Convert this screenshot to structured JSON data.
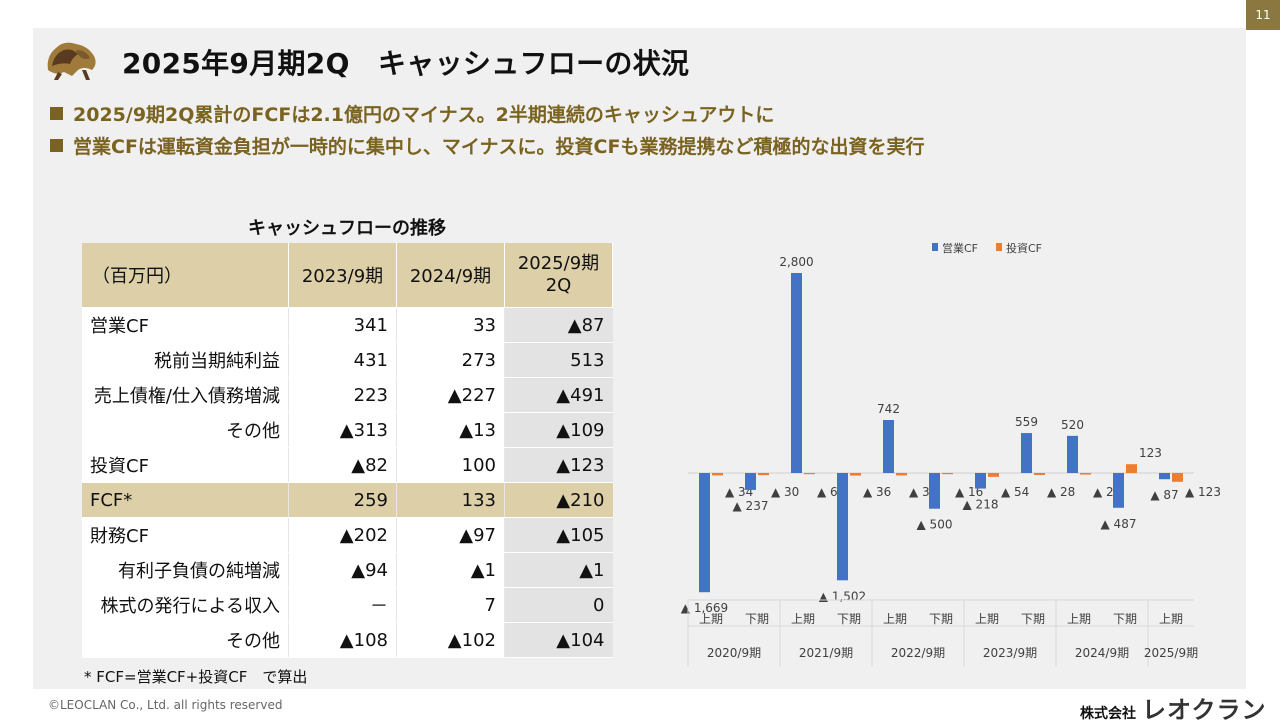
{
  "page_number": "11",
  "title": "2025年9月期2Q　キャッシュフローの状況",
  "bullets": [
    "2025/9期2Q累計のFCFは2.1億円のマイナス。2半期連続のキャッシュアウトに",
    "営業CFは運転資金負担が一時的に集中し、マイナスに。投資CFも業務提携など積極的な出資を実行"
  ],
  "table": {
    "title": "キャッシュフローの推移",
    "headers": [
      "（百万円）",
      "2023/9期",
      "2024/9期",
      "2025/9期\n2Q"
    ],
    "rows": [
      {
        "label": "営業CF",
        "indent": false,
        "fcf": false,
        "values": [
          "341",
          "33",
          "▲87"
        ]
      },
      {
        "label": "税前当期純利益",
        "indent": true,
        "fcf": false,
        "values": [
          "431",
          "273",
          "513"
        ]
      },
      {
        "label": "売上債権/仕入債務増減",
        "indent": true,
        "fcf": false,
        "values": [
          "223",
          "▲227",
          "▲491"
        ]
      },
      {
        "label": "その他",
        "indent": true,
        "fcf": false,
        "values": [
          "▲313",
          "▲13",
          "▲109"
        ]
      },
      {
        "label": "投資CF",
        "indent": false,
        "fcf": false,
        "values": [
          "▲82",
          "100",
          "▲123"
        ]
      },
      {
        "label": "FCF*",
        "indent": false,
        "fcf": true,
        "values": [
          "259",
          "133",
          "▲210"
        ]
      },
      {
        "label": "財務CF",
        "indent": false,
        "fcf": false,
        "values": [
          "▲202",
          "▲97",
          "▲105"
        ]
      },
      {
        "label": "有利子負債の純増減",
        "indent": true,
        "fcf": false,
        "values": [
          "▲94",
          "▲1",
          "▲1"
        ]
      },
      {
        "label": "株式の発行による収入",
        "indent": true,
        "fcf": false,
        "values": [
          "－",
          "7",
          "0"
        ]
      },
      {
        "label": "その他",
        "indent": true,
        "fcf": false,
        "values": [
          "▲108",
          "▲102",
          "▲104"
        ]
      }
    ],
    "footnote": "* FCF=営業CF+投資CF　で算出"
  },
  "chart_data": {
    "type": "bar",
    "categories": [
      {
        "half": "上期",
        "year": "2020/9期"
      },
      {
        "half": "下期",
        "year": "2020/9期"
      },
      {
        "half": "上期",
        "year": "2021/9期"
      },
      {
        "half": "下期",
        "year": "2021/9期"
      },
      {
        "half": "上期",
        "year": "2022/9期"
      },
      {
        "half": "下期",
        "year": "2022/9期"
      },
      {
        "half": "上期",
        "year": "2023/9期"
      },
      {
        "half": "下期",
        "year": "2023/9期"
      },
      {
        "half": "上期",
        "year": "2024/9期"
      },
      {
        "half": "下期",
        "year": "2024/9期"
      },
      {
        "half": "上期",
        "year": "2025/9期"
      }
    ],
    "years": [
      "2020/9期",
      "2021/9期",
      "2022/9期",
      "2023/9期",
      "2024/9期",
      "2025/9期"
    ],
    "series": [
      {
        "name": "営業CF",
        "color": "#4472c4",
        "values": [
          -1669,
          -237,
          2800,
          -1502,
          742,
          -500,
          -218,
          559,
          520,
          -487,
          -87
        ],
        "labels": [
          "▲ 1,669",
          "▲ 237",
          "2,800",
          "▲ 1,502",
          "742",
          "▲ 500",
          "▲ 218",
          "559",
          "520",
          "▲ 487",
          "▲ 87"
        ]
      },
      {
        "name": "投資CF",
        "color": "#ed7d31",
        "values": [
          -34,
          -30,
          -6,
          -36,
          -34,
          -16,
          -54,
          -28,
          -22,
          123,
          -123
        ],
        "labels": [
          "▲ 34",
          "▲ 30",
          "▲ 6",
          "▲ 36",
          "▲ 34",
          "▲ 16",
          "▲ 54",
          "▲ 28",
          "▲ 22",
          "123",
          "▲ 123"
        ]
      }
    ],
    "legend": "top-center",
    "grid": false
  },
  "copyright": "©LEOCLAN Co., Ltd. all rights reserved",
  "company": {
    "prefix": "株式会社",
    "name": "レオクラン"
  }
}
